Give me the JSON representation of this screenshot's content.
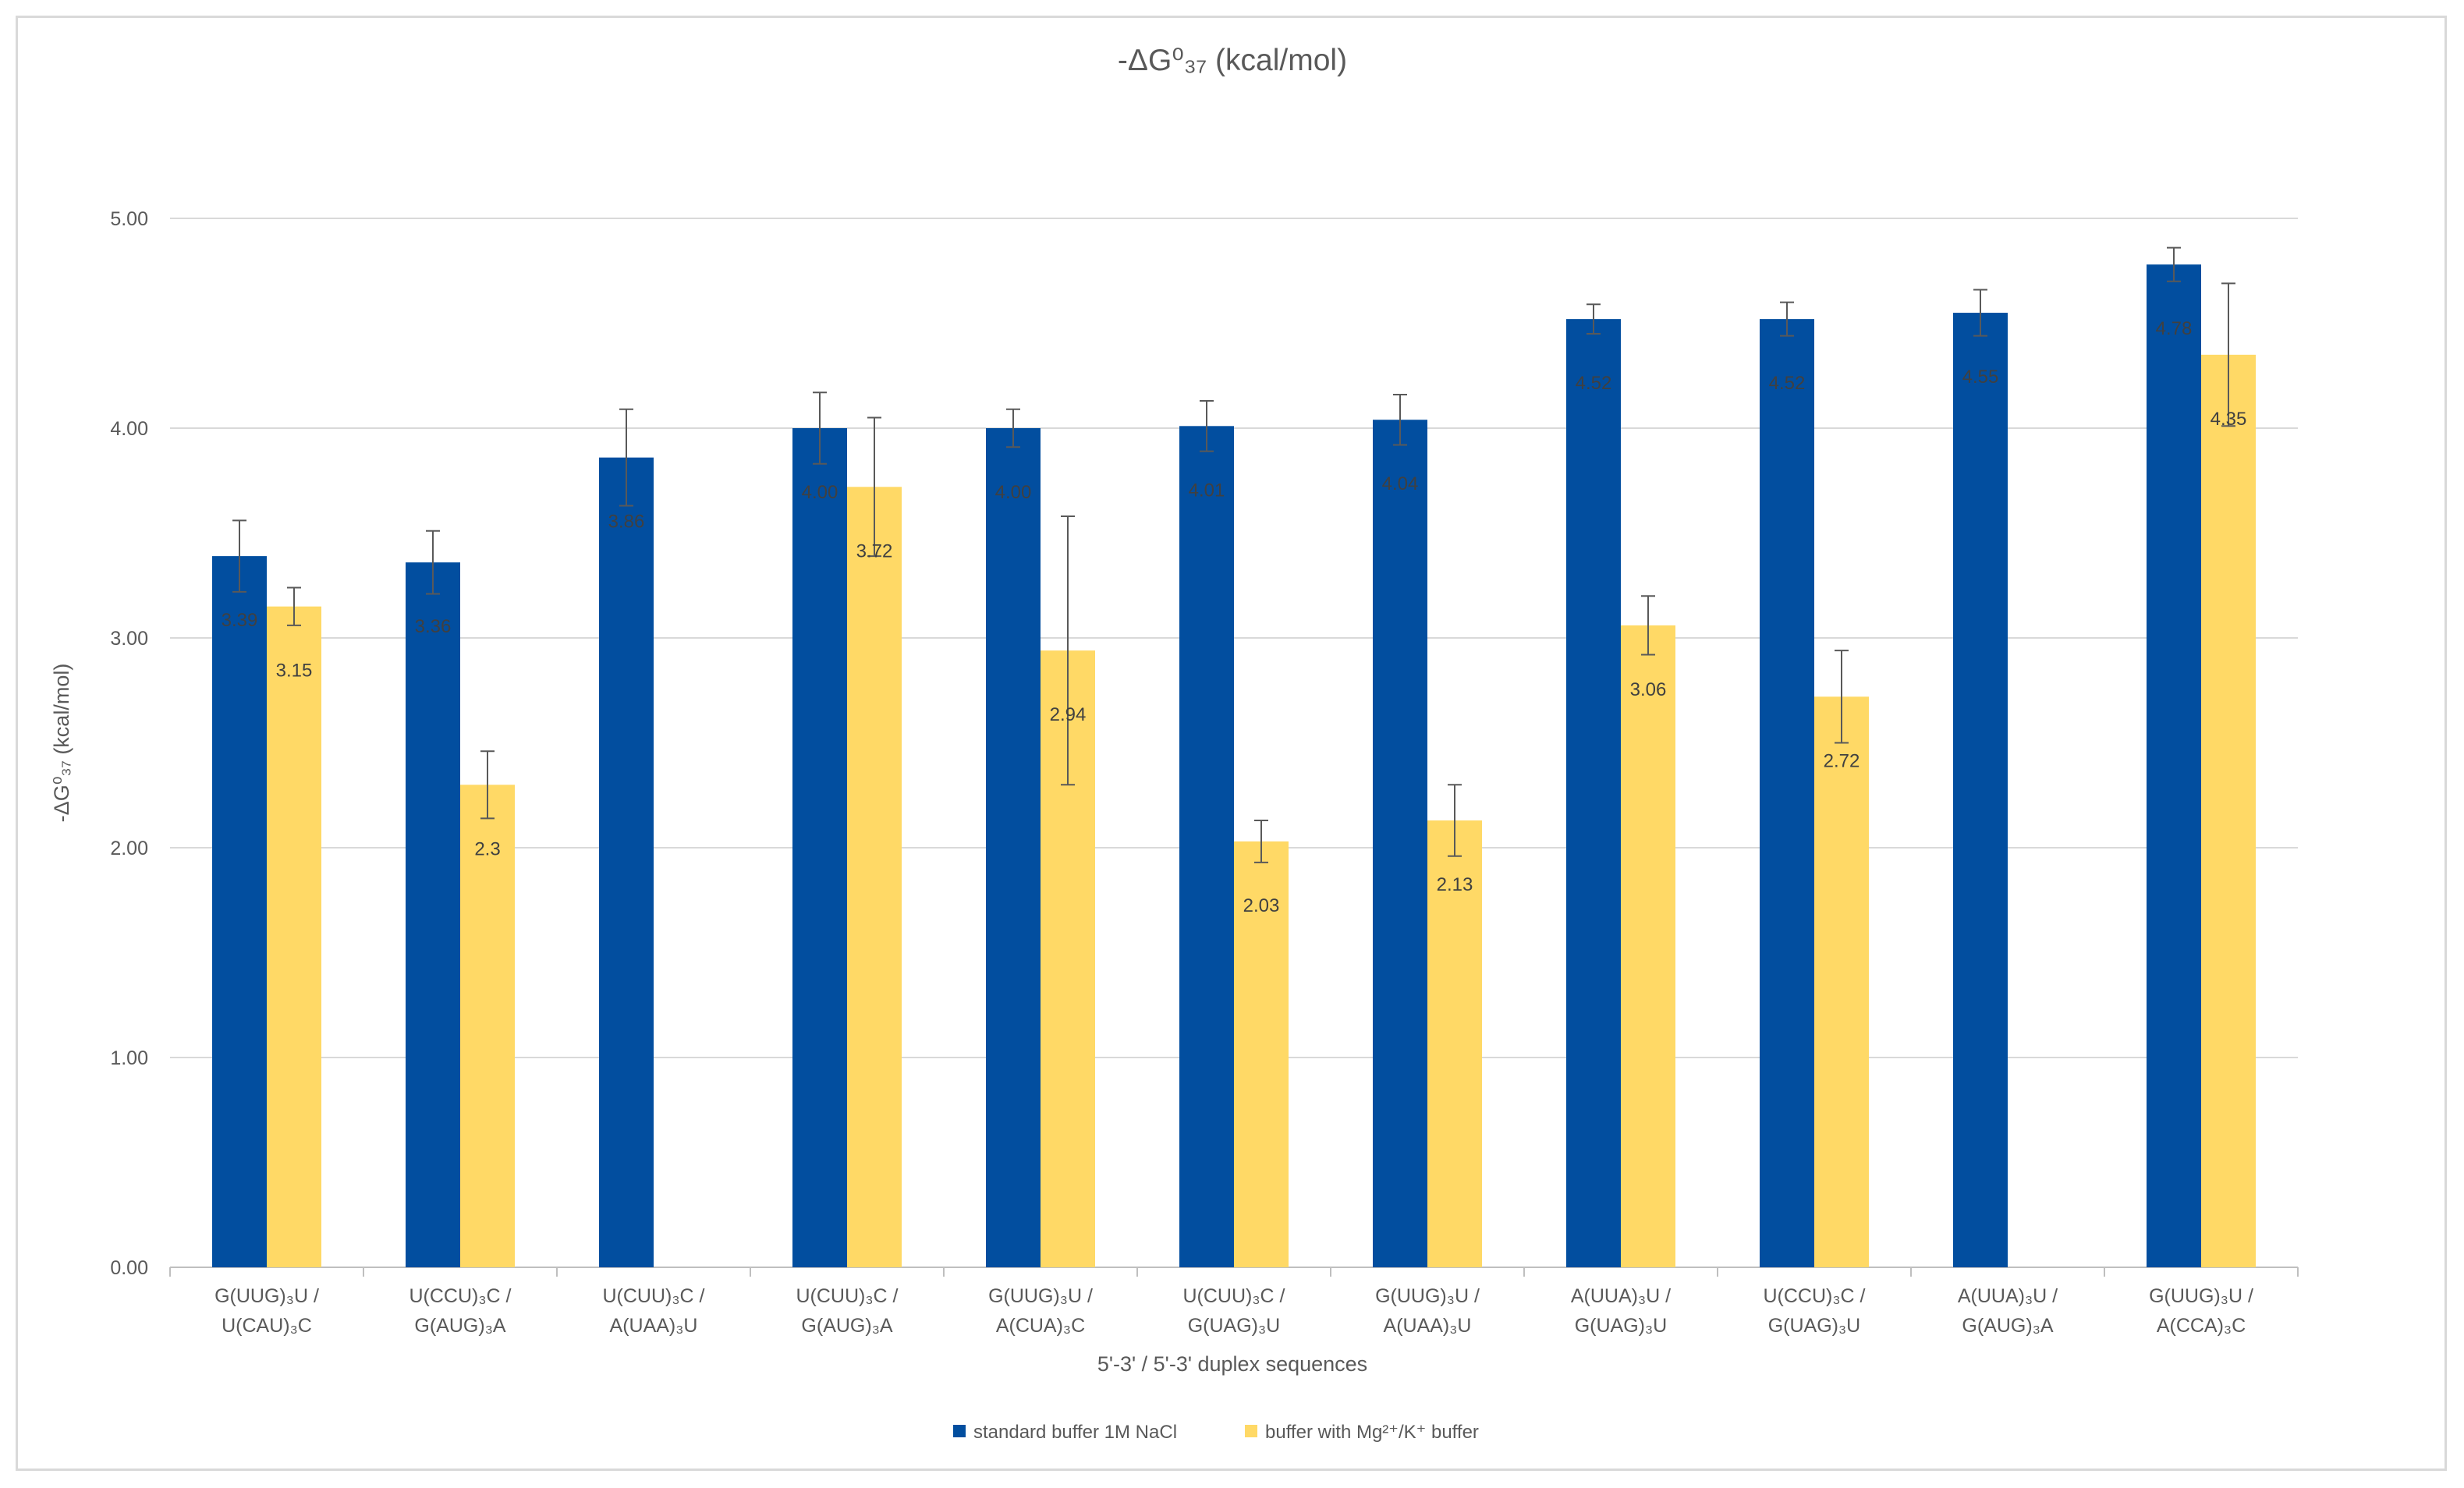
{
  "chart_data": {
    "type": "bar",
    "title": "-ΔG⁰₃₇ (kcal/mol)",
    "xlabel": "5'-3' / 5'-3' duplex sequences",
    "ylabel": "-ΔG⁰₃₇ (kcal/mol)",
    "ylim": [
      0,
      5
    ],
    "yticks": [
      "0.00",
      "1.00",
      "2.00",
      "3.00",
      "4.00",
      "5.00"
    ],
    "grid": true,
    "legend_position": "bottom",
    "categories": [
      [
        "G(UUG)₃U /",
        "U(CAU)₃C"
      ],
      [
        "U(CCU)₃C /",
        "G(AUG)₃A"
      ],
      [
        "U(CUU)₃C /",
        "A(UAA)₃U"
      ],
      [
        "U(CUU)₃C /",
        "G(AUG)₃A"
      ],
      [
        "G(UUG)₃U /",
        "A(CUA)₃C"
      ],
      [
        "U(CUU)₃C /",
        "G(UAG)₃U"
      ],
      [
        "G(UUG)₃U /",
        "A(UAA)₃U"
      ],
      [
        "A(UUA)₃U /",
        "G(UAG)₃U"
      ],
      [
        "U(CCU)₃C /",
        "G(UAG)₃U"
      ],
      [
        "A(UUA)₃U /",
        "G(AUG)₃A"
      ],
      [
        "G(UUG)₃U /",
        "A(CCA)₃C"
      ]
    ],
    "series": [
      {
        "name": "standard buffer 1M NaCl",
        "color": "#024e9f",
        "values": [
          3.39,
          3.36,
          3.86,
          4.0,
          4.0,
          4.01,
          4.04,
          4.52,
          4.52,
          4.55,
          4.78
        ],
        "labels": [
          "3.39",
          "3.36",
          "3.86",
          "4.00",
          "4.00",
          "4.01",
          "4.04",
          "4.52",
          "4.52",
          "4.55",
          "4.78"
        ],
        "errors": [
          0.17,
          0.15,
          0.23,
          0.17,
          0.09,
          0.12,
          0.12,
          0.07,
          0.08,
          0.11,
          0.08
        ]
      },
      {
        "name": "buffer with Mg²⁺/K⁺ buffer",
        "color": "#ffd966",
        "values": [
          3.15,
          2.3,
          null,
          3.72,
          2.94,
          2.03,
          2.13,
          3.06,
          2.72,
          null,
          4.35
        ],
        "labels": [
          "3.15",
          "2.3",
          "",
          "3.72",
          "2.94",
          "2.03",
          "2.13",
          "3.06",
          "2.72",
          "",
          "4.35"
        ],
        "errors": [
          0.09,
          0.16,
          null,
          0.33,
          0.64,
          0.1,
          0.17,
          0.14,
          0.22,
          null,
          0.34
        ]
      }
    ]
  }
}
